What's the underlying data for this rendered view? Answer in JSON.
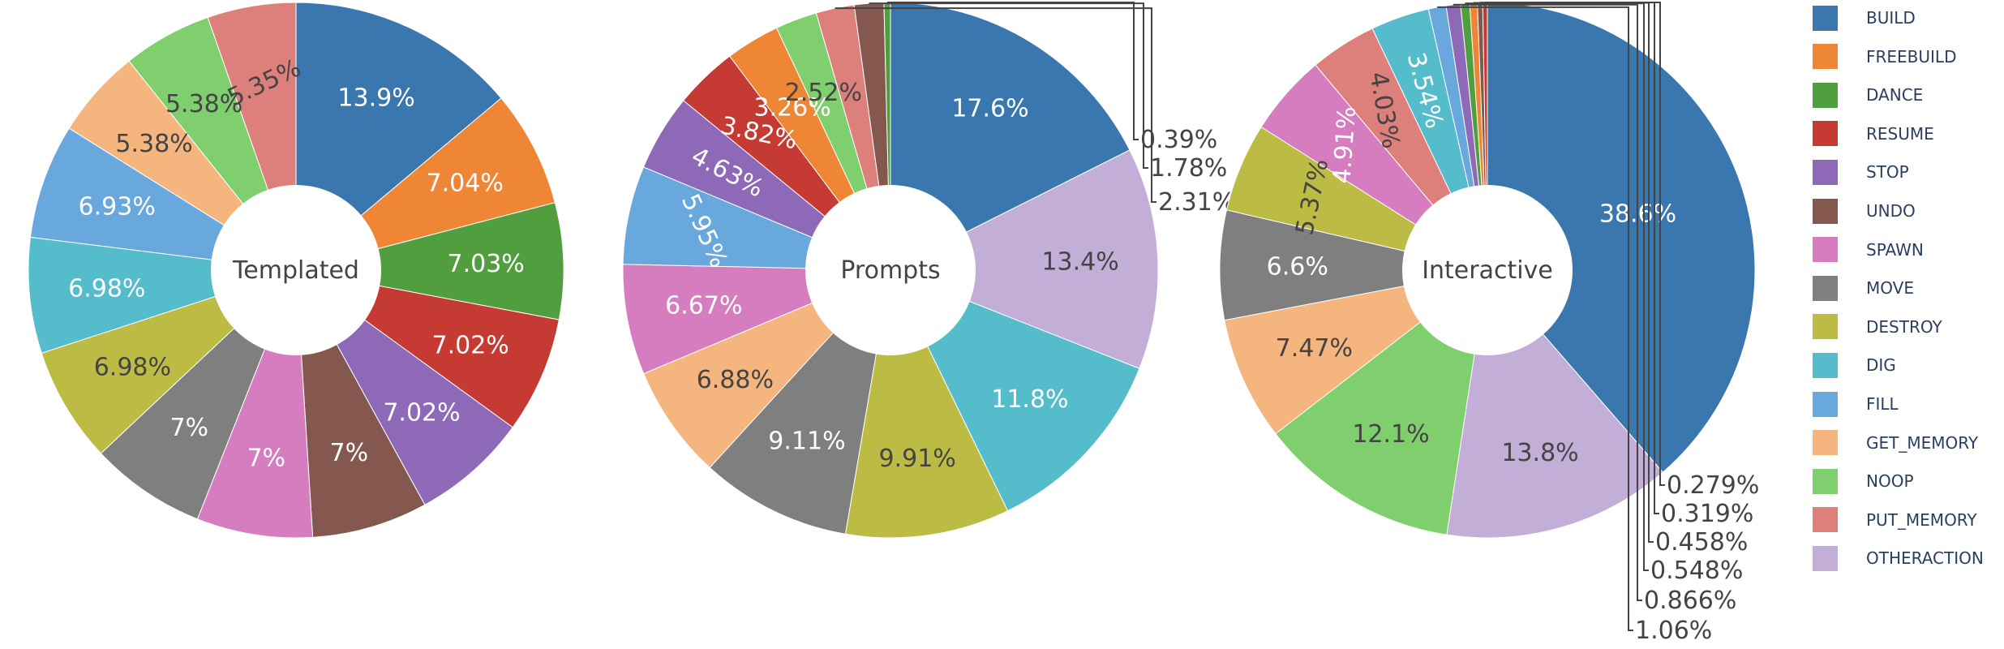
{
  "chart_data": [
    {
      "type": "pie",
      "hole_label": "Templated",
      "labels": [
        "BUILD",
        "FREEBUILD",
        "DANCE",
        "RESUME",
        "STOP",
        "UNDO",
        "SPAWN",
        "MOVE",
        "DESTROY",
        "DIG",
        "FILL",
        "GET_MEMORY",
        "NOOP",
        "PUT_MEMORY"
      ],
      "values": [
        13.9,
        7.04,
        7.03,
        7.02,
        7.02,
        7,
        7,
        7,
        6.98,
        6.98,
        6.93,
        5.38,
        5.38,
        5.35
      ],
      "text": [
        "13.9%",
        "7.04%",
        "7.03%",
        "7.02%",
        "7.02%",
        "7%",
        "7%",
        "7%",
        "6.98%",
        "6.98%",
        "6.93%",
        "5.38%",
        "5.38%",
        "5.35%"
      ]
    },
    {
      "type": "pie",
      "hole_label": "Prompts",
      "labels": [
        "BUILD",
        "OTHERACTION",
        "DIG",
        "DESTROY",
        "MOVE",
        "GET_MEMORY",
        "SPAWN",
        "FILL",
        "STOP",
        "RESUME",
        "FREEBUILD",
        "NOOP",
        "PUT_MEMORY",
        "UNDO",
        "DANCE"
      ],
      "values": [
        17.6,
        13.4,
        11.8,
        9.91,
        9.11,
        6.88,
        6.67,
        5.95,
        4.63,
        3.82,
        3.26,
        2.52,
        2.31,
        1.78,
        0.39
      ],
      "text": [
        "17.6%",
        "13.4%",
        "11.8%",
        "9.91%",
        "9.11%",
        "6.88%",
        "6.67%",
        "5.95%",
        "4.63%",
        "3.82%",
        "3.26%",
        "2.52%",
        "2.31%",
        "1.78%",
        "0.39%"
      ]
    },
    {
      "type": "pie",
      "hole_label": "Interactive",
      "labels": [
        "BUILD",
        "OTHERACTION",
        "NOOP",
        "GET_MEMORY",
        "MOVE",
        "DESTROY",
        "SPAWN",
        "PUT_MEMORY",
        "DIG",
        "FILL",
        "STOP",
        "DANCE",
        "FREEBUILD",
        "UNDO",
        "RESUME"
      ],
      "values": [
        38.6,
        13.8,
        12.1,
        7.47,
        6.6,
        5.37,
        4.91,
        4.03,
        3.54,
        1.06,
        0.866,
        0.548,
        0.458,
        0.319,
        0.279
      ],
      "text": [
        "38.6%",
        "13.8%",
        "12.1%",
        "7.47%",
        "6.6%",
        "5.37%",
        "4.91%",
        "4.03%",
        "3.54%",
        "1.06%",
        "0.866%",
        "0.548%",
        "0.458%",
        "0.319%",
        "0.279%"
      ]
    }
  ],
  "legend": {
    "position": "right",
    "items": [
      "BUILD",
      "FREEBUILD",
      "DANCE",
      "RESUME",
      "STOP",
      "UNDO",
      "SPAWN",
      "MOVE",
      "DESTROY",
      "DIG",
      "FILL",
      "GET_MEMORY",
      "NOOP",
      "PUT_MEMORY",
      "OTHERACTION"
    ]
  },
  "colors": {
    "BUILD": "#3a77af",
    "FREEBUILD": "#ef8636",
    "DANCE": "#519e3e",
    "RESUME": "#c53a32",
    "STOP": "#8d69b8",
    "UNDO": "#84584e",
    "SPAWN": "#d57dbf",
    "MOVE": "#7f7f7f",
    "DESTROY": "#bcbc45",
    "DIG": "#55bccc",
    "FILL": "#69a8dc",
    "GET_MEMORY": "#f5b57f",
    "NOOP": "#80cf6e",
    "PUT_MEMORY": "#dd807b",
    "OTHERACTION": "#c3aed7"
  }
}
